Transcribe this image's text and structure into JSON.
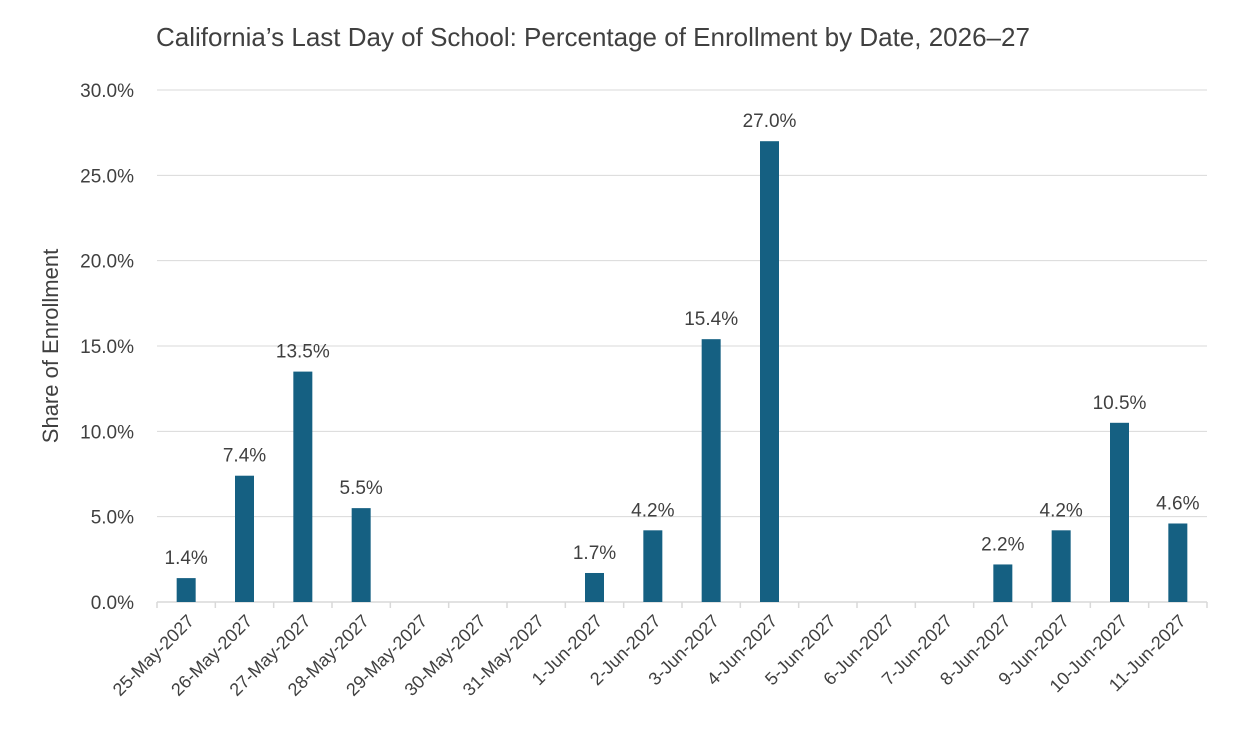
{
  "chart_data": {
    "type": "bar",
    "title": "California’s Last Day of School: Percentage of Enrollment by Date, 2026–27",
    "xlabel": "",
    "ylabel": "Share of Enrollment",
    "ylim": [
      0,
      30
    ],
    "yticks": [
      "0.0%",
      "5.0%",
      "10.0%",
      "15.0%",
      "20.0%",
      "25.0%",
      "30.0%"
    ],
    "grid": true,
    "categories": [
      "25-May-2027",
      "26-May-2027",
      "27-May-2027",
      "28-May-2027",
      "29-May-2027",
      "30-May-2027",
      "31-May-2027",
      "1-Jun-2027",
      "2-Jun-2027",
      "3-Jun-2027",
      "4-Jun-2027",
      "5-Jun-2027",
      "6-Jun-2027",
      "7-Jun-2027",
      "8-Jun-2027",
      "9-Jun-2027",
      "10-Jun-2027",
      "11-Jun-2027"
    ],
    "values": [
      1.4,
      7.4,
      13.5,
      5.5,
      null,
      null,
      null,
      1.7,
      4.2,
      15.4,
      27.0,
      null,
      null,
      null,
      2.2,
      4.2,
      10.5,
      4.6
    ],
    "data_labels": [
      "1.4%",
      "7.4%",
      "13.5%",
      "5.5%",
      "",
      "",
      "",
      "1.7%",
      "4.2%",
      "15.4%",
      "27.0%",
      "",
      "",
      "",
      "2.2%",
      "4.2%",
      "10.5%",
      "4.6%"
    ],
    "colors": {
      "bar": "#156082",
      "grid": "#d9d9d9",
      "axis": "#d9d9d9",
      "text": "#404040"
    }
  }
}
